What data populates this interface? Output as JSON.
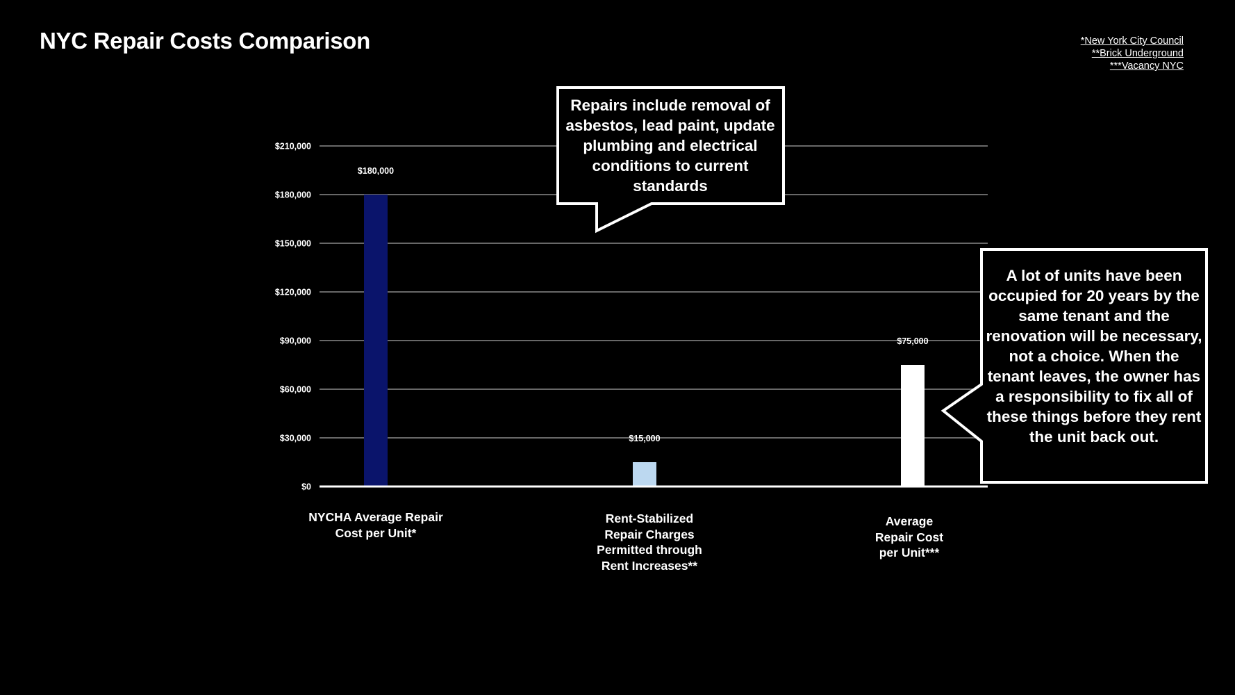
{
  "title": "NYC Repair Costs Comparison",
  "sources": [
    "*New York City Council",
    "**Brick Underground",
    "***Vacancy NYC"
  ],
  "callouts": [
    "Repairs include removal of asbestos, lead paint, update plumbing and electrical conditions to current standards",
    "A lot of units have been occupied for 20 years by the same tenant and the renovation will be necessary, not a choice. When the tenant leaves, the owner has a responsibility to fix all of these things before they rent the unit back out."
  ],
  "chart_data": {
    "type": "bar",
    "categories": [
      "NYCHA Average Repair Cost per Unit*",
      "Rent-Stabilized Repair Charges Permitted through Rent Increases**",
      "Average Repair Cost per Unit***"
    ],
    "values": [
      180000,
      15000,
      75000
    ],
    "data_labels": [
      "$180,000",
      "$15,000",
      "$75,000"
    ],
    "bar_colors": [
      "#0a146b",
      "#bcd8f0",
      "#ffffff"
    ],
    "ylim": [
      0,
      210000
    ],
    "yticks": [
      0,
      30000,
      60000,
      90000,
      120000,
      150000,
      180000,
      210000
    ],
    "ytick_labels": [
      "$0",
      "$30,000",
      "$60,000",
      "$90,000",
      "$120,000",
      "$150,000",
      "$180,000",
      "$210,000"
    ],
    "grid": true,
    "legend": false,
    "xlabel": "",
    "ylabel": ""
  }
}
